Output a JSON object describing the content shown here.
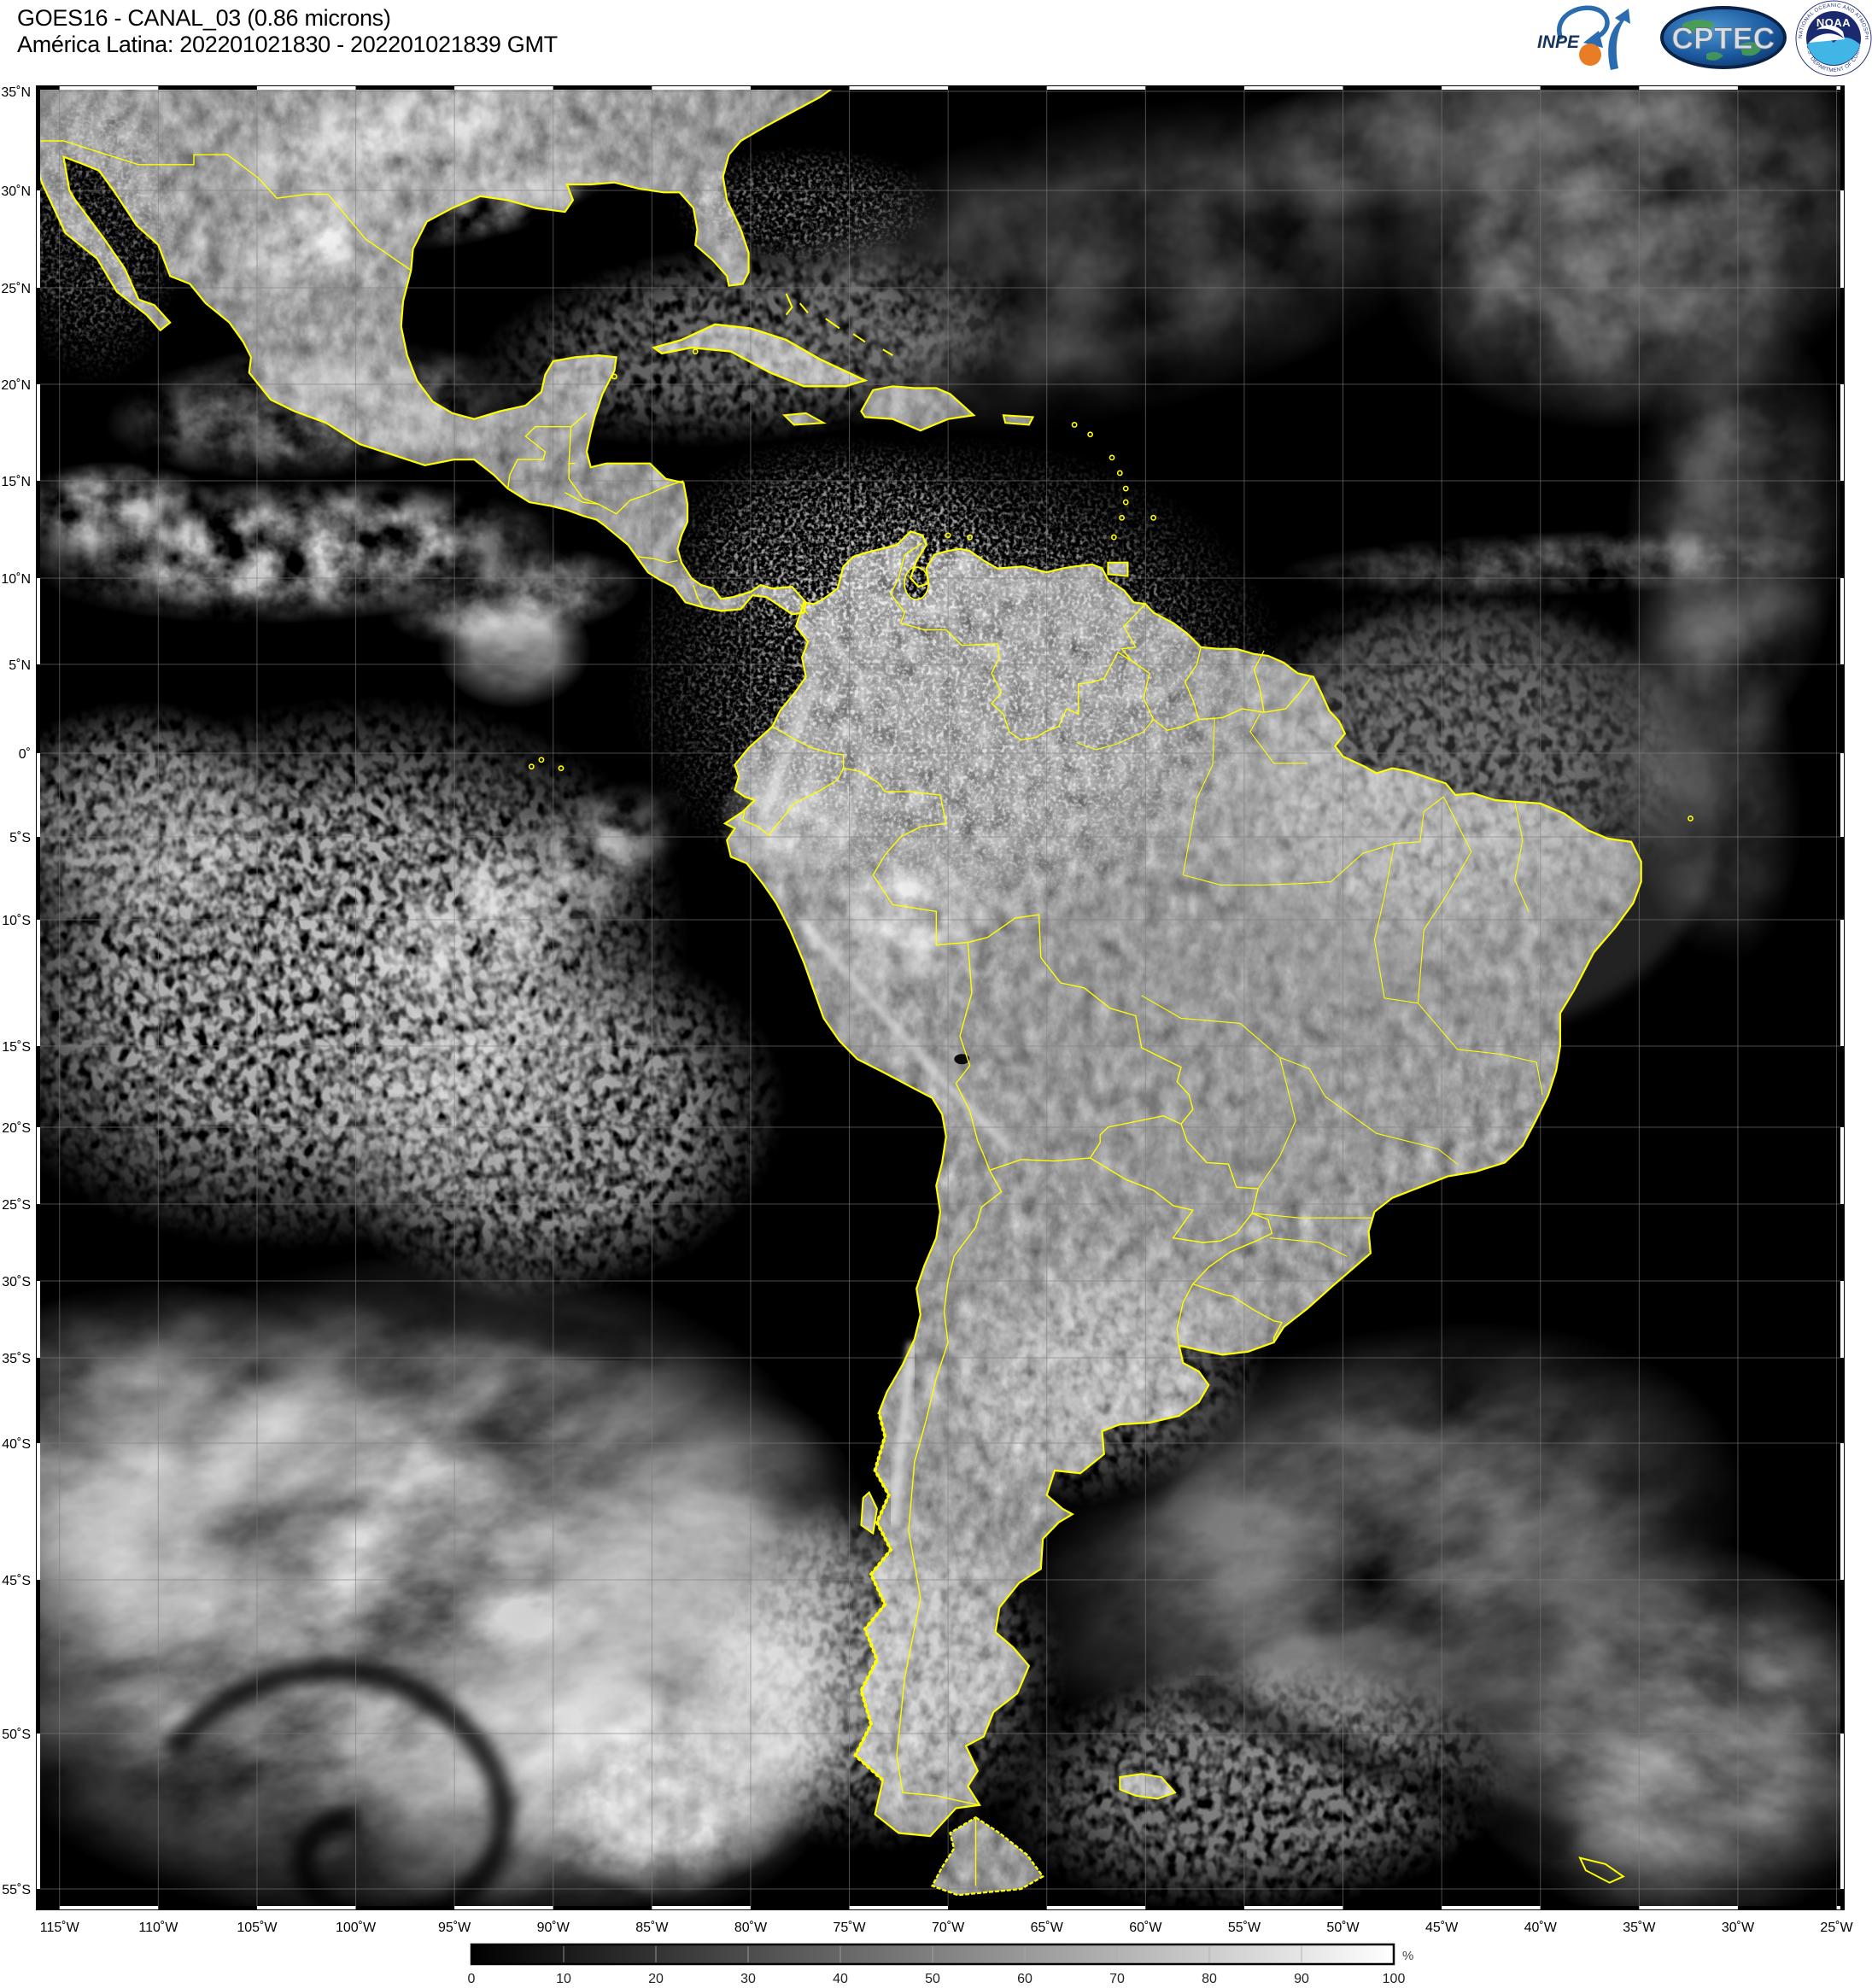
{
  "header": {
    "title_line1": "GOES16 - CANAL_03 (0.86 microns)",
    "title_line2": "América Latina: 202201021830 - 202201021839 GMT"
  },
  "logos": {
    "inpe": "INPE",
    "cptec": "CPTEC",
    "noaa": "NOAA",
    "noaa_ring_top": "NATIONAL OCEANIC AND ATMOSPHERIC ADMINISTRATION",
    "noaa_ring_bottom": "U.S. DEPARTMENT OF COMMERCE"
  },
  "map": {
    "lat_labels": [
      "35˚N",
      "30˚N",
      "25˚N",
      "20˚N",
      "15˚N",
      "10˚N",
      "5˚N",
      "0˚",
      "5˚S",
      "10˚S",
      "15˚S",
      "20˚S",
      "25˚S",
      "30˚S",
      "35˚S",
      "40˚S",
      "45˚S",
      "50˚S",
      "55˚S"
    ],
    "lon_labels": [
      "115˚W",
      "110˚W",
      "105˚W",
      "100˚W",
      "95˚W",
      "90˚W",
      "85˚W",
      "80˚W",
      "75˚W",
      "70˚W",
      "65˚W",
      "60˚W",
      "55˚W",
      "50˚W",
      "45˚W",
      "40˚W",
      "35˚W",
      "30˚W",
      "25˚W"
    ],
    "border_color": "#ffff00",
    "grid_color": "#7d7d7d",
    "ocean_color": "#000000",
    "land_color": "#5c5c5c"
  },
  "colorbar": {
    "ticks": [
      "0",
      "10",
      "20",
      "30",
      "40",
      "50",
      "60",
      "70",
      "80",
      "90",
      "100"
    ],
    "unit": "%",
    "min_color": "#000000",
    "max_color": "#ffffff"
  }
}
